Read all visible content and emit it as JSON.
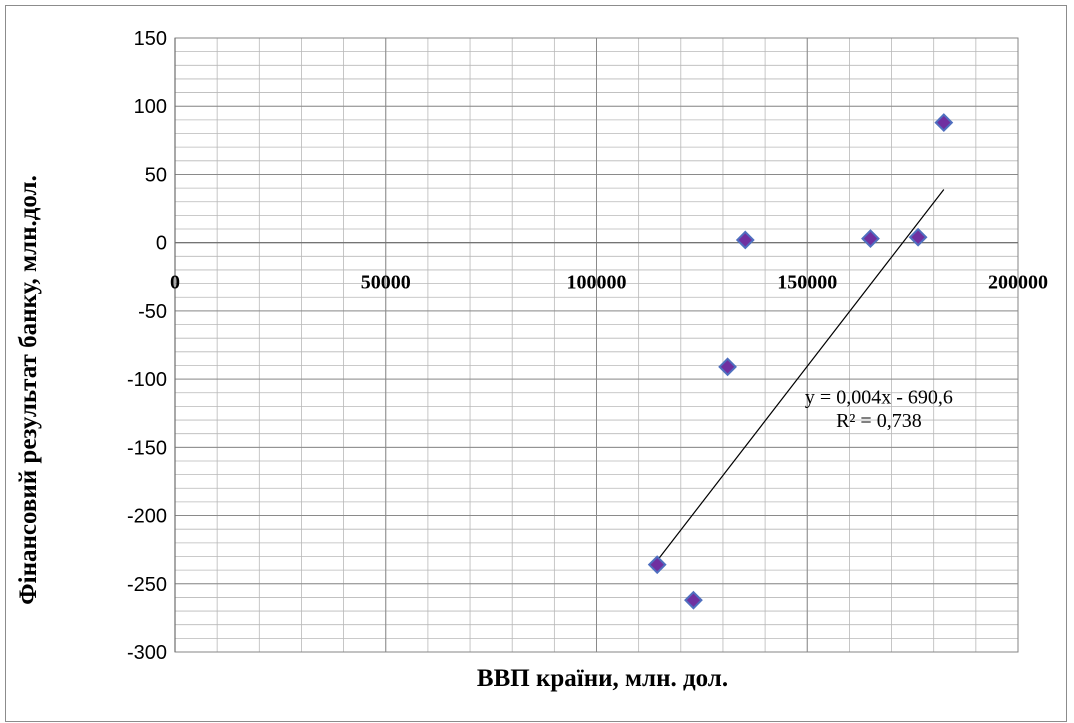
{
  "chart_data": {
    "type": "scatter",
    "title": "",
    "xlabel": "ВВП країни, млн. дол.",
    "ylabel": "Фінансовий результат банку,  млн.дол.",
    "xlim": [
      0,
      200000
    ],
    "ylim": [
      -300,
      150
    ],
    "x_ticks": [
      0,
      50000,
      100000,
      150000,
      200000
    ],
    "x_tick_labels": [
      "0",
      "50000",
      "100000",
      "150000",
      "200000"
    ],
    "y_ticks": [
      150,
      100,
      50,
      0,
      -50,
      -100,
      -150,
      -200,
      -250,
      -300
    ],
    "y_tick_labels": [
      "150",
      "100",
      "50",
      "0",
      "-50",
      "-100",
      "-150",
      "-200",
      "-250",
      "-300"
    ],
    "grid": true,
    "marker": "diamond",
    "marker_color": "#7030A0",
    "marker_edge_color": "#4F6FBF",
    "series": [
      {
        "x": [
          114400,
          123000,
          131100,
          135300,
          165000,
          176300,
          182400
        ],
        "y": [
          -236,
          -262,
          -91,
          2,
          3,
          4,
          88
        ]
      }
    ],
    "trendline": {
      "type": "linear",
      "x_range": [
        114400,
        182400
      ],
      "slope": 0.004,
      "intercept": -690.6,
      "equation_label": "y = 0,004x - 690,6",
      "r2_label": "R² = 0,738"
    }
  }
}
